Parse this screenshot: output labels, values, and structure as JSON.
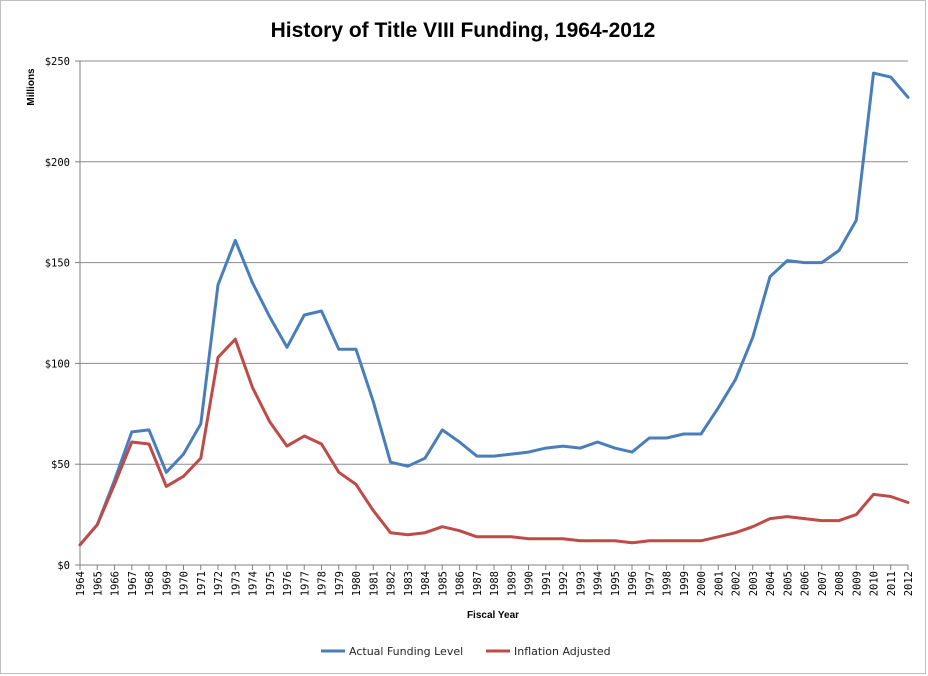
{
  "chart_data": {
    "type": "line",
    "title": "History of Title VIII Funding, 1964-2012",
    "xlabel": "Fiscal Year",
    "ylabel": "Millions",
    "ylim": [
      0,
      250
    ],
    "y_ticks": [
      0,
      50,
      100,
      150,
      200,
      250
    ],
    "y_tick_labels": [
      "$0",
      "$50",
      "$100",
      "$150",
      "$200",
      "$250"
    ],
    "grid": "horizontal",
    "legend_position": "bottom",
    "x": [
      "1964",
      "1965",
      "1966",
      "1967",
      "1968",
      "1969",
      "1970",
      "1971",
      "1972",
      "1973",
      "1974",
      "1975",
      "1976",
      "1977",
      "1978",
      "1979",
      "1980",
      "1981",
      "1982",
      "1983",
      "1984",
      "1985",
      "1986",
      "1987",
      "1988",
      "1989",
      "1990",
      "1991",
      "1992",
      "1993",
      "1994",
      "1995",
      "1996",
      "1997",
      "1998",
      "1999",
      "2000",
      "2001",
      "2002",
      "2003",
      "2004",
      "2005",
      "2006",
      "2007",
      "2008",
      "2009",
      "2010",
      "2011",
      "2012"
    ],
    "series": [
      {
        "name": "Actual Funding Level",
        "color": "#4a7ebb",
        "values": [
          10,
          20,
          42,
          66,
          67,
          46,
          55,
          70,
          139,
          161,
          140,
          123,
          108,
          124,
          126,
          107,
          107,
          81,
          51,
          49,
          53,
          67,
          61,
          54,
          54,
          55,
          56,
          58,
          59,
          58,
          61,
          58,
          56,
          63,
          63,
          65,
          65,
          78,
          92,
          113,
          143,
          151,
          150,
          150,
          156,
          171,
          244,
          242,
          232
        ]
      },
      {
        "name": "Inflation Adjusted",
        "color": "#be4b48",
        "values": [
          10,
          20,
          40,
          61,
          60,
          39,
          44,
          53,
          103,
          112,
          88,
          71,
          59,
          64,
          60,
          46,
          40,
          27,
          16,
          15,
          16,
          19,
          17,
          14,
          14,
          14,
          13,
          13,
          13,
          12,
          12,
          12,
          11,
          12,
          12,
          12,
          12,
          14,
          16,
          19,
          23,
          24,
          23,
          22,
          22,
          25,
          35,
          34,
          31
        ]
      }
    ]
  }
}
